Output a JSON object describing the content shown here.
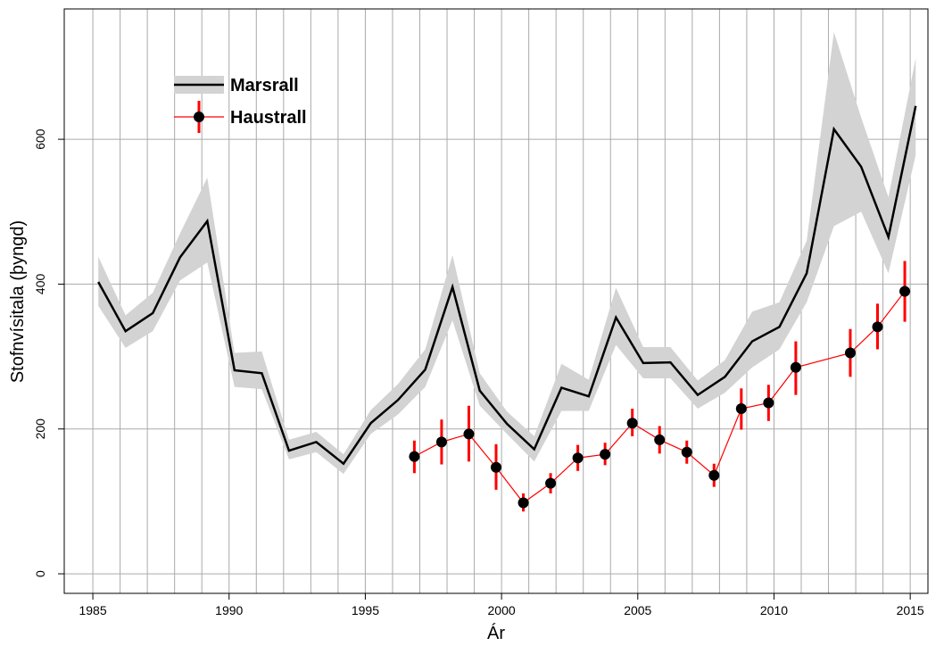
{
  "chart_data": {
    "type": "line",
    "x_label": "Ár",
    "y_label": "Stofnvísitala (þyngd)",
    "xlim": [
      1983.95,
      2015.65
    ],
    "ylim": [
      -27,
      780
    ],
    "xticks": [
      1985,
      1990,
      1995,
      2000,
      2005,
      2010,
      2015
    ],
    "yticks": [
      0,
      200,
      400,
      600
    ],
    "xgrid": [
      1985,
      1986,
      1987,
      1988,
      1989,
      1990,
      1991,
      1992,
      1993,
      1994,
      1995,
      1996,
      1997,
      1998,
      1999,
      2000,
      2001,
      2002,
      2003,
      2004,
      2005,
      2006,
      2007,
      2008,
      2009,
      2010,
      2011,
      2012,
      2013,
      2014,
      2015
    ],
    "grid": true,
    "legend": "upper left",
    "series": [
      {
        "name": "Marsrall",
        "color": "#000000",
        "band_color": "#d3d3d3",
        "x": [
          1985.2,
          1986.2,
          1987.2,
          1988.2,
          1989.2,
          1990.2,
          1991.2,
          1992.2,
          1993.2,
          1994.2,
          1995.2,
          1996.2,
          1997.2,
          1998.2,
          1999.2,
          2000.2,
          2001.2,
          2002.2,
          2003.2,
          2004.2,
          2005.2,
          2006.2,
          2007.2,
          2008.2,
          2009.2,
          2010.2,
          2011.2,
          2012.2,
          2013.2,
          2014.2,
          2015.2
        ],
        "values": [
          403,
          335,
          360,
          437,
          487,
          281,
          277,
          170,
          182,
          152,
          208,
          240,
          282,
          396,
          253,
          207,
          172,
          257,
          245,
          354,
          291,
          292,
          247,
          272,
          321,
          341,
          415,
          614,
          562,
          465,
          646
        ],
        "lower": [
          370,
          312,
          335,
          405,
          430,
          258,
          255,
          158,
          168,
          138,
          193,
          220,
          258,
          350,
          232,
          193,
          155,
          225,
          225,
          316,
          270,
          270,
          228,
          250,
          285,
          310,
          375,
          480,
          500,
          415,
          578
        ],
        "upper": [
          438,
          357,
          388,
          470,
          547,
          305,
          307,
          185,
          196,
          165,
          226,
          262,
          310,
          440,
          277,
          224,
          190,
          290,
          268,
          395,
          313,
          313,
          267,
          295,
          362,
          375,
          460,
          748,
          630,
          520,
          712
        ]
      },
      {
        "name": "Haustrall",
        "color": "#ff0000",
        "marker_color": "#000000",
        "x": [
          1996.8,
          1997.8,
          1998.8,
          1999.8,
          2000.8,
          2001.8,
          2002.8,
          2003.8,
          2004.8,
          2005.8,
          2006.8,
          2007.8,
          2008.8,
          2009.8,
          2010.8,
          2012.8,
          2013.8,
          2014.8
        ],
        "values": [
          162,
          182,
          193,
          147,
          98,
          125,
          160,
          165,
          208,
          185,
          168,
          136,
          228,
          236,
          285,
          305,
          341,
          390
        ],
        "lower": [
          139,
          151,
          155,
          116,
          86,
          111,
          142,
          150,
          190,
          166,
          152,
          120,
          199,
          211,
          247,
          272,
          310,
          348
        ],
        "upper": [
          184,
          213,
          232,
          179,
          111,
          139,
          178,
          181,
          228,
          204,
          184,
          152,
          256,
          261,
          321,
          338,
          373,
          432
        ]
      }
    ]
  }
}
